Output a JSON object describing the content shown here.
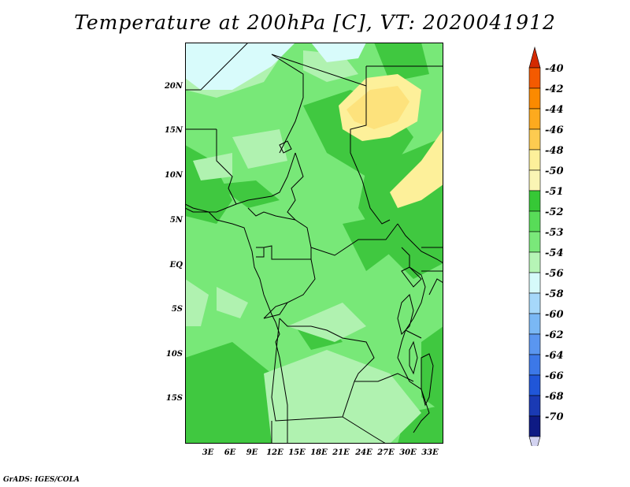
{
  "title": "Temperature at 200hPa [C], VT: 2020041912",
  "credit": "GrADS: IGES/COLA",
  "lat_labels": [
    "20N",
    "15N",
    "10N",
    "5N",
    "EQ",
    "5S",
    "10S",
    "15S"
  ],
  "lon_labels": [
    "3E",
    "6E",
    "9E",
    "12E",
    "15E",
    "18E",
    "21E",
    "24E",
    "27E",
    "30E",
    "33E"
  ],
  "colorbar": {
    "labels": [
      "-40",
      "-42",
      "-44",
      "-46",
      "-48",
      "-50",
      "-51",
      "-52",
      "-53",
      "-54",
      "-56",
      "-58",
      "-60",
      "-62",
      "-64",
      "-66",
      "-68",
      "-70"
    ],
    "colors": [
      "#d42a00",
      "#f45a00",
      "#fb8a00",
      "#fdaa1e",
      "#fdcb50",
      "#fdf09a",
      "#faf5b4",
      "#36c836",
      "#58dc58",
      "#7ae87a",
      "#b6f5b6",
      "#d6fafa",
      "#a6d8fa",
      "#7ab8f5",
      "#5a96f0",
      "#3c78e8",
      "#2056d8",
      "#1a3ab4",
      "#0e1a84",
      "#d2d2f0"
    ]
  },
  "map": {
    "name": "temperature-map",
    "region": "Central Africa"
  }
}
